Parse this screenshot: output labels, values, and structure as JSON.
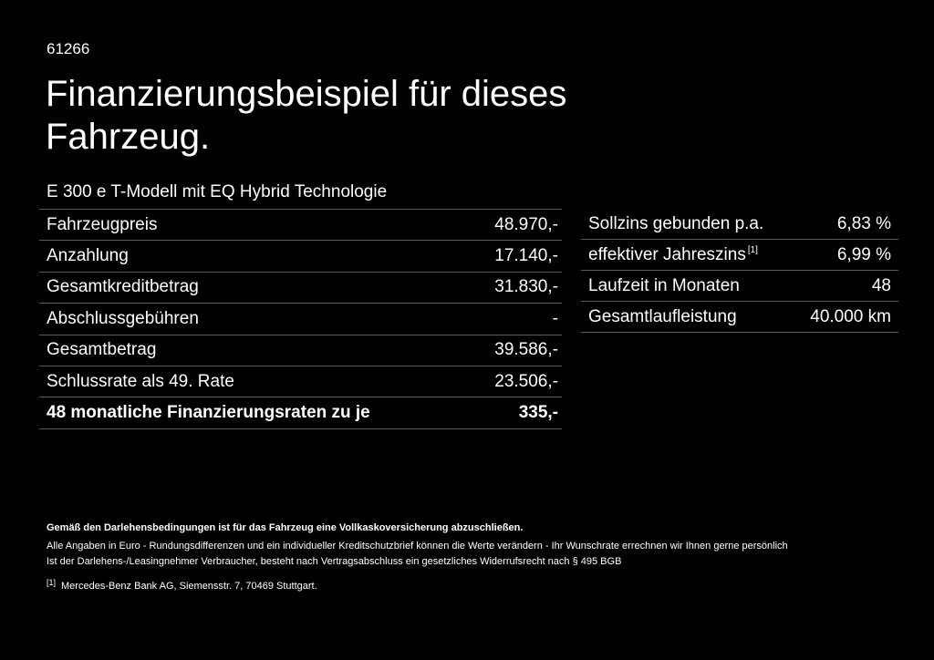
{
  "header": {
    "code": "61266",
    "title": "Finanzierungsbeispiel für dieses Fahrzeug.",
    "model": "E 300 e T-Modell mit EQ Hybrid Technologie"
  },
  "left_table": [
    {
      "label": "Fahrzeugpreis",
      "value": "48.970,-"
    },
    {
      "label": "Anzahlung",
      "value": "17.140,-"
    },
    {
      "label": "Gesamtkreditbetrag",
      "value": "31.830,-"
    },
    {
      "label": "Abschlussgebühren",
      "value": "-"
    },
    {
      "label": "Gesamtbetrag",
      "value": "39.586,-"
    },
    {
      "label": "Schlussrate als 49. Rate",
      "value": "23.506,-"
    },
    {
      "label": "48 monatliche Finanzierungsraten zu je",
      "value": "335,-"
    }
  ],
  "right_table": [
    {
      "label": "Sollzins gebunden p.a.",
      "value": "6,83 %"
    },
    {
      "label": "effektiver Jahreszins",
      "footnote": "[1]",
      "value": "6,99 %"
    },
    {
      "label": "Laufzeit in Monaten",
      "value": "48"
    },
    {
      "label": "Gesamtlaufleistung",
      "value": "40.000 km"
    }
  ],
  "notes": {
    "bold": "Gemäß den Darlehensbedingungen ist für das Fahrzeug eine Vollkaskoversicherung abzuschließen.",
    "line1": "Alle Angaben in Euro - Rundungsdifferenzen und ein individueller Kreditschutzbrief können die Werte verändern - Ihr Wunschrate errechnen wir Ihnen gerne persönlich",
    "line2": "Ist der Darlehens-/Leasingnehmer Verbraucher, besteht nach Vertragsabschluss ein gesetzliches Widerrufsrecht nach § 495 BGB",
    "footnote_marker": "[1]",
    "footnote_text": "Mercedes-Benz Bank AG, Siemensstr. 7, 70469 Stuttgart."
  }
}
